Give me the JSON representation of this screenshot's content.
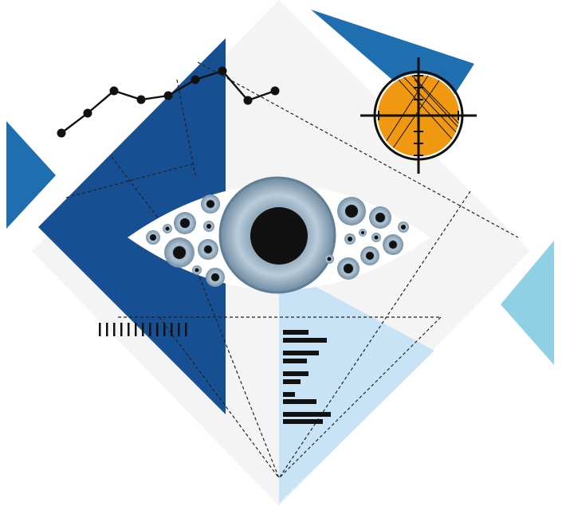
{
  "illustration": {
    "subject": "eye-surveillance-concept",
    "palette": {
      "background": "#ffffff",
      "panel": "#f4f4f4",
      "navy": "#174f93",
      "blue": "#1f6fb0",
      "sky": "#8fd0e4",
      "pale_blue": "#c8e3f5",
      "orange": "#f0980f",
      "ink": "#111111",
      "iris_outer": "#5f7f98",
      "iris_inner": "#b9ccdb"
    },
    "icons": [
      "line-chart-icon",
      "crosshair-target-icon",
      "eye-icon",
      "barcode-icon",
      "bar-list-icon"
    ]
  }
}
